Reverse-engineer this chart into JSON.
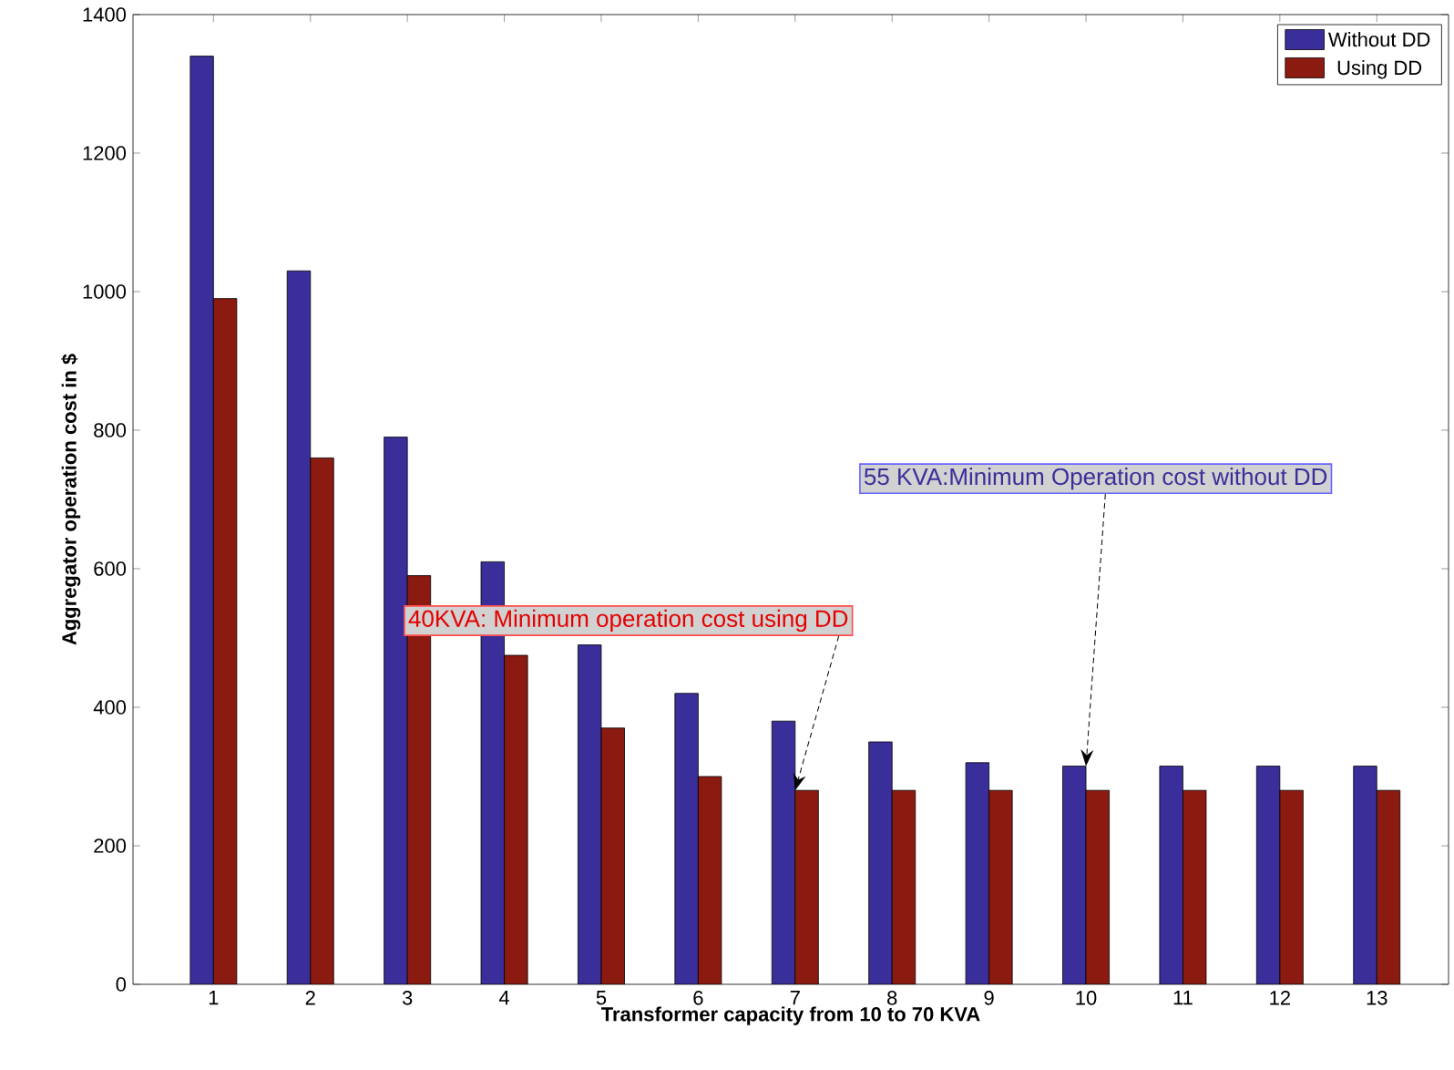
{
  "chart_data": {
    "type": "bar",
    "xlabel": "Transformer capacity from 10 to 70 KVA",
    "ylabel": "Aggregator operation cost in $",
    "categories": [
      "1",
      "2",
      "3",
      "4",
      "5",
      "6",
      "7",
      "8",
      "9",
      "10",
      "11",
      "12",
      "13"
    ],
    "series": [
      {
        "name": "Without DD",
        "color": "#3a2f9a",
        "values": [
          1340,
          1030,
          790,
          610,
          490,
          420,
          380,
          350,
          320,
          315,
          315,
          315,
          315
        ]
      },
      {
        "name": "Using DD",
        "color": "#8b1a10",
        "values": [
          990,
          760,
          590,
          475,
          370,
          300,
          280,
          280,
          280,
          280,
          280,
          280,
          280
        ]
      }
    ],
    "ylim": [
      0,
      1400
    ],
    "yticks": [
      0,
      200,
      400,
      600,
      800,
      1000,
      1200,
      1400
    ],
    "grid": false,
    "legend": "top right",
    "annotations": [
      {
        "text": "40KVA: Minimum operation cost using DD",
        "x": "7",
        "y": 280
      },
      {
        "text": "55 KVA:Minimum Operation cost without DD",
        "x": "10",
        "y": 315
      }
    ]
  }
}
